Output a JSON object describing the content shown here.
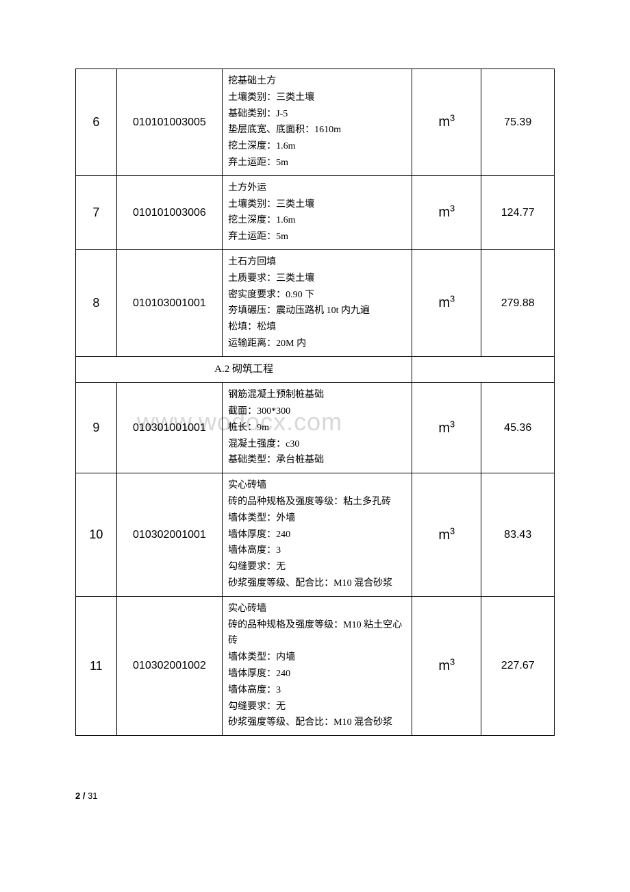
{
  "watermark": "www.wodocx.com",
  "page_current": "2",
  "page_total": "31",
  "section_label": "A.2 砌筑工程",
  "rows": [
    {
      "seq": "6",
      "code": "010101003005",
      "desc": "挖基础土方\n土壤类别：三类土壤\n基础类别：J-5\n垫层底宽、底面积：1610m\n挖土深度：1.6m\n弃土运距：5m",
      "unit_base": "m",
      "unit_sup": "3",
      "qty": "75.39"
    },
    {
      "seq": "7",
      "code": "010101003006",
      "desc": "土方外运\n土壤类别：三类土壤\n挖土深度：1.6m\n弃土运距：5m",
      "unit_base": "m",
      "unit_sup": "3",
      "qty": "124.77"
    },
    {
      "seq": "8",
      "code": "010103001001",
      "desc": "土石方回填\n土质要求：三类土壤\n密实度要求：0.90 下\n夯填碾压：震动压路机 10t 内九遍\n松填：松填\n运输距离：20M 内",
      "unit_base": "m",
      "unit_sup": "3",
      "qty": "279.88"
    },
    {
      "seq": "9",
      "code": "010301001001",
      "desc": "钢筋混凝土预制桩基础\n截面：300*300\n桩长：9m\n混凝土强度：c30\n基础类型：承台桩基础",
      "unit_base": "m",
      "unit_sup": "3",
      "qty": "45.36"
    },
    {
      "seq": "10",
      "code": "010302001001",
      "desc": "实心砖墙\n砖的品种规格及强度等级：粘土多孔砖\n墙体类型：外墙\n墙体厚度：240\n墙体高度：3\n勾缝要求：无\n砂浆强度等级、配合比：M10 混合砂浆",
      "unit_base": "m",
      "unit_sup": "3",
      "qty": "83.43"
    },
    {
      "seq": "11",
      "code": "010302001002",
      "desc": "实心砖墙\n砖的品种规格及强度等级：M10 粘土空心砖\n墙体类型：内墙\n墙体厚度：240\n墙体高度：3\n勾缝要求：无\n砂浆强度等级、配合比：M10 混合砂浆",
      "unit_base": "m",
      "unit_sup": "3",
      "qty": "227.67"
    }
  ]
}
